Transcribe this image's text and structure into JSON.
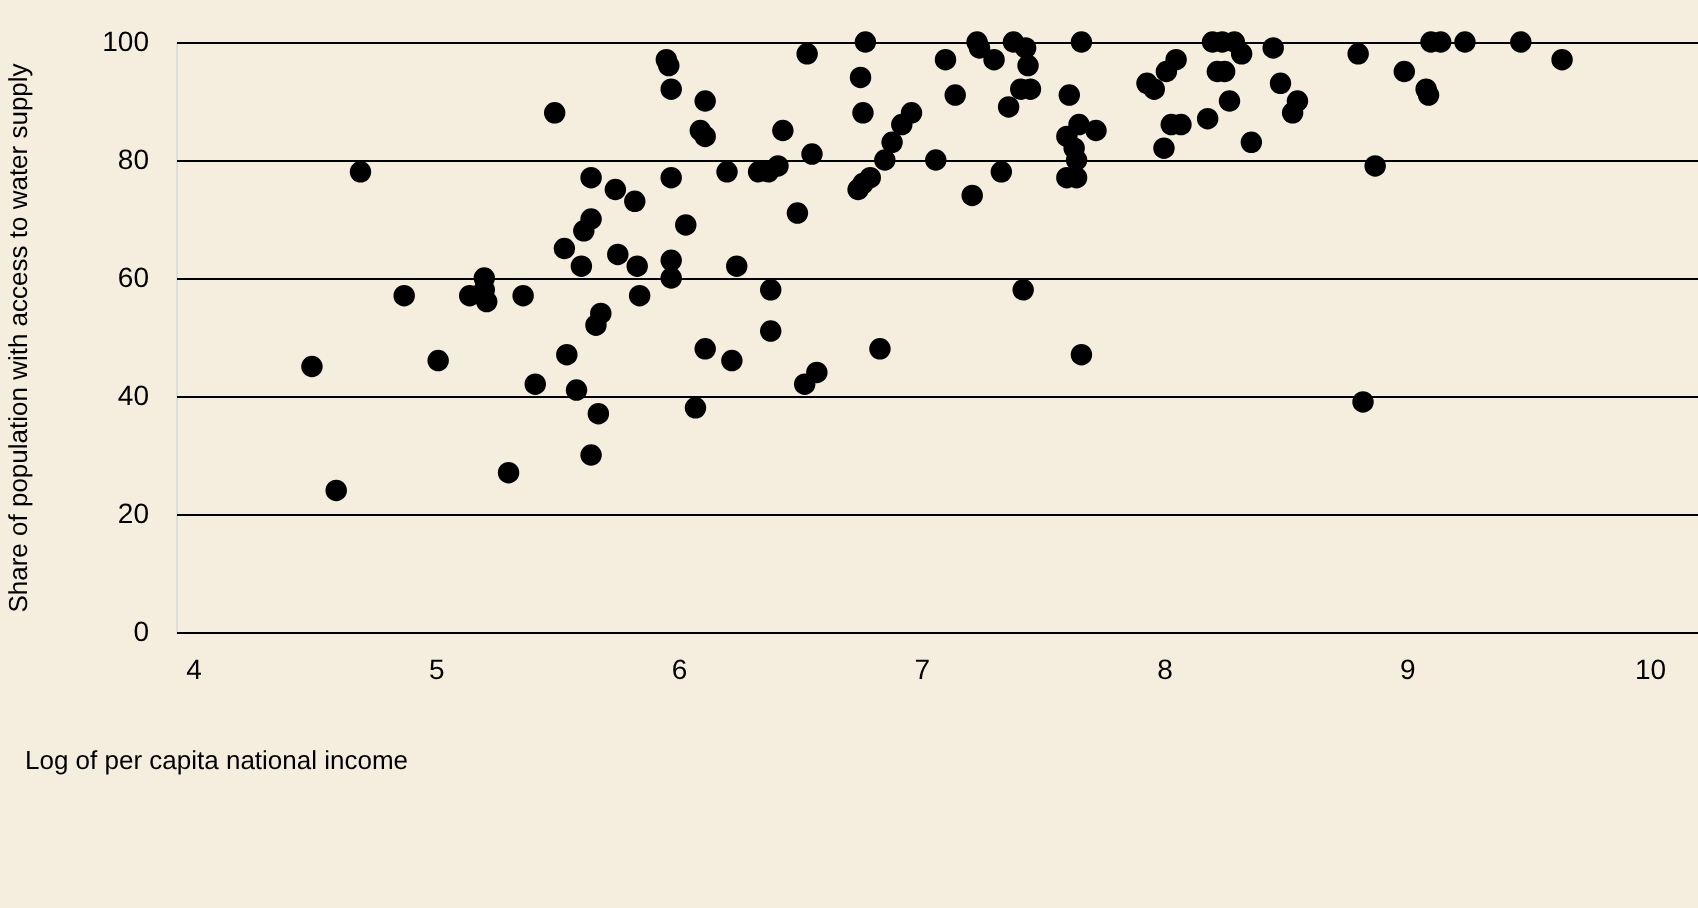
{
  "chart_data": {
    "type": "scatter",
    "xlabel": "Log of per capita national income",
    "ylabel": "Share of population with access to water supply",
    "x": [
      4.49,
      4.59,
      4.69,
      4.87,
      5.01,
      5.14,
      5.2,
      5.2,
      5.21,
      5.3,
      5.36,
      5.41,
      5.49,
      5.53,
      5.54,
      5.58,
      5.6,
      5.61,
      5.64,
      5.64,
      5.64,
      5.66,
      5.67,
      5.68,
      5.74,
      5.75,
      5.82,
      5.83,
      5.84,
      5.95,
      5.96,
      5.97,
      5.97,
      5.97,
      5.97,
      6.03,
      6.07,
      6.09,
      6.11,
      6.11,
      6.11,
      6.2,
      6.22,
      6.24,
      6.33,
      6.37,
      6.38,
      6.38,
      6.41,
      6.43,
      6.49,
      6.52,
      6.53,
      6.55,
      6.57,
      6.74,
      6.75,
      6.76,
      6.76,
      6.77,
      6.79,
      6.83,
      6.85,
      6.88,
      6.92,
      6.96,
      7.06,
      7.1,
      7.14,
      7.21,
      7.23,
      7.24,
      7.3,
      7.33,
      7.36,
      7.38,
      7.41,
      7.42,
      7.43,
      7.44,
      7.45,
      7.6,
      7.6,
      7.61,
      7.63,
      7.64,
      7.64,
      7.65,
      7.66,
      7.66,
      7.72,
      7.93,
      7.96,
      8.0,
      8.01,
      8.03,
      8.05,
      8.07,
      8.18,
      8.2,
      8.22,
      8.24,
      8.25,
      8.27,
      8.29,
      8.32,
      8.36,
      8.45,
      8.48,
      8.53,
      8.55,
      8.8,
      8.82,
      8.87,
      8.99,
      9.08,
      9.09,
      9.1,
      9.14,
      9.24,
      9.47,
      9.64
    ],
    "series": [
      {
        "color": "#000000",
        "values": [
          45,
          24,
          78,
          57,
          46,
          57,
          60,
          58,
          56,
          27,
          57,
          42,
          88,
          65,
          47,
          41,
          62,
          68,
          70,
          77,
          30,
          52,
          37,
          54,
          75,
          64,
          73,
          62,
          57,
          97,
          96,
          92,
          77,
          63,
          60,
          69,
          38,
          85,
          84,
          90,
          48,
          78,
          46,
          62,
          78,
          78,
          51,
          58,
          79,
          85,
          71,
          42,
          98,
          81,
          44,
          75,
          94,
          76,
          88,
          100,
          77,
          48,
          80,
          83,
          86,
          88,
          80,
          97,
          91,
          74,
          100,
          99,
          97,
          78,
          89,
          100,
          92,
          58,
          99,
          96,
          92,
          84,
          77,
          91,
          82,
          80,
          77,
          86,
          47,
          100,
          85,
          93,
          92,
          82,
          95,
          86,
          97,
          86,
          87,
          100,
          95,
          100,
          95,
          90,
          100,
          98,
          83,
          99,
          93,
          88,
          90,
          98,
          39,
          79,
          95,
          92,
          91,
          100,
          100,
          100,
          100,
          97
        ]
      }
    ],
    "xlim": [
      3.93,
      10.2
    ],
    "xticks": [
      4,
      5,
      6,
      7,
      8,
      9,
      10
    ],
    "ylim": [
      0,
      100
    ],
    "yticks": [
      0,
      20,
      40,
      60,
      80,
      100
    ],
    "grid": "y",
    "marker": "circle"
  }
}
